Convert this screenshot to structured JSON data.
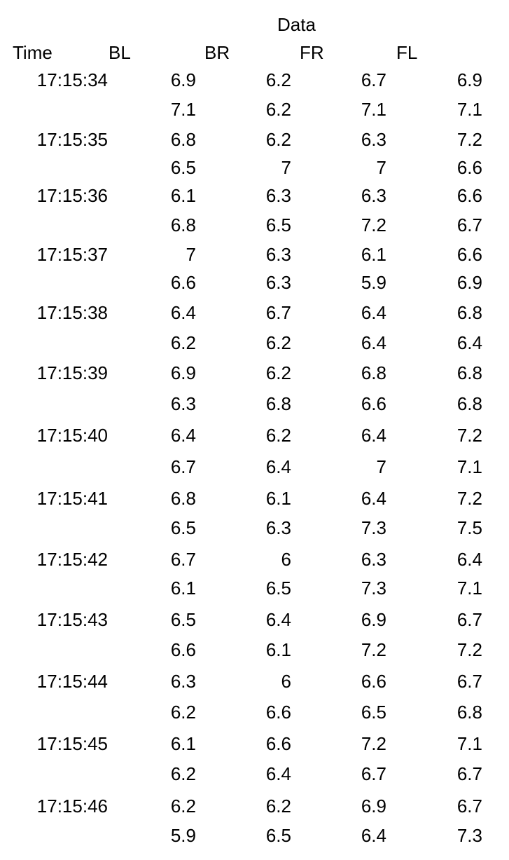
{
  "table": {
    "group_header": "Data",
    "columns": [
      "Time",
      "BL",
      "BR",
      "FR",
      "FL"
    ],
    "rows": [
      {
        "time": "17:15:34",
        "values": [
          "6.9",
          "6.2",
          "6.7",
          "6.9"
        ]
      },
      {
        "time": "",
        "values": [
          "7.1",
          "6.2",
          "7.1",
          "7.1"
        ]
      },
      {
        "time": "17:15:35",
        "values": [
          "6.8",
          "6.2",
          "6.3",
          "7.2"
        ]
      },
      {
        "time": "",
        "values": [
          "6.5",
          "7",
          "7",
          "6.6"
        ]
      },
      {
        "time": "17:15:36",
        "values": [
          "6.1",
          "6.3",
          "6.3",
          "6.6"
        ]
      },
      {
        "time": "",
        "values": [
          "6.8",
          "6.5",
          "7.2",
          "6.7"
        ]
      },
      {
        "time": "17:15:37",
        "values": [
          "7",
          "6.3",
          "6.1",
          "6.6"
        ]
      },
      {
        "time": "",
        "values": [
          "6.6",
          "6.3",
          "5.9",
          "6.9"
        ]
      },
      {
        "time": "17:15:38",
        "values": [
          "6.4",
          "6.7",
          "6.4",
          "6.8"
        ]
      },
      {
        "time": "",
        "values": [
          "6.2",
          "6.2",
          "6.4",
          "6.4"
        ]
      },
      {
        "time": "17:15:39",
        "values": [
          "6.9",
          "6.2",
          "6.8",
          "6.8"
        ]
      },
      {
        "time": "",
        "values": [
          "6.3",
          "6.8",
          "6.6",
          "6.8"
        ]
      },
      {
        "time": "17:15:40",
        "values": [
          "6.4",
          "6.2",
          "6.4",
          "7.2"
        ]
      },
      {
        "time": "",
        "values": [
          "6.7",
          "6.4",
          "7",
          "7.1"
        ]
      },
      {
        "time": "17:15:41",
        "values": [
          "6.8",
          "6.1",
          "6.4",
          "7.2"
        ]
      },
      {
        "time": "",
        "values": [
          "6.5",
          "6.3",
          "7.3",
          "7.5"
        ]
      },
      {
        "time": "17:15:42",
        "values": [
          "6.7",
          "6",
          "6.3",
          "6.4"
        ]
      },
      {
        "time": "",
        "values": [
          "6.1",
          "6.5",
          "7.3",
          "7.1"
        ]
      },
      {
        "time": "17:15:43",
        "values": [
          "6.5",
          "6.4",
          "6.9",
          "6.7"
        ]
      },
      {
        "time": "",
        "values": [
          "6.6",
          "6.1",
          "7.2",
          "7.2"
        ]
      },
      {
        "time": "17:15:44",
        "values": [
          "6.3",
          "6",
          "6.6",
          "6.7"
        ]
      },
      {
        "time": "",
        "values": [
          "6.2",
          "6.6",
          "6.5",
          "6.8"
        ]
      },
      {
        "time": "17:15:45",
        "values": [
          "6.1",
          "6.6",
          "7.2",
          "7.1"
        ]
      },
      {
        "time": "",
        "values": [
          "6.2",
          "6.4",
          "6.7",
          "6.7"
        ]
      },
      {
        "time": "17:15:46",
        "values": [
          "6.2",
          "6.2",
          "6.9",
          "6.7"
        ]
      },
      {
        "time": "",
        "values": [
          "5.9",
          "6.5",
          "6.4",
          "7.3"
        ]
      }
    ]
  }
}
